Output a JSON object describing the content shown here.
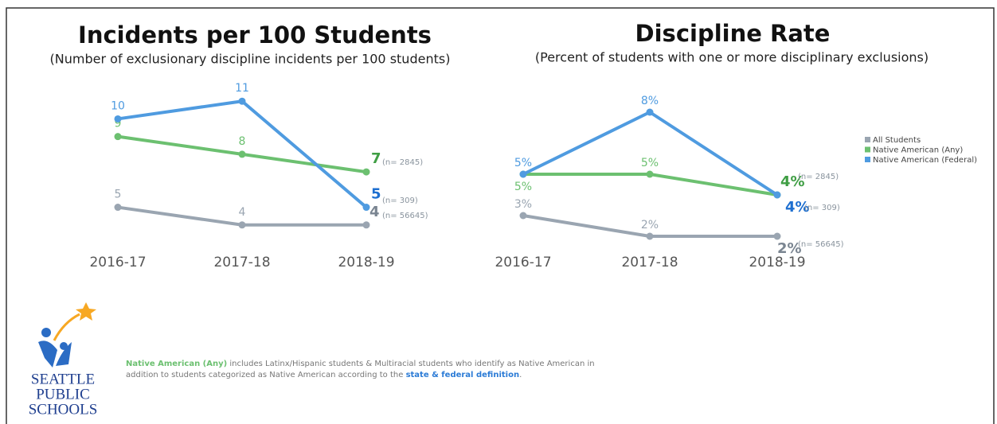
{
  "chart_data": [
    {
      "type": "line",
      "title": "Incidents per 100 Students",
      "subtitle": "(Number of exclusionary discipline incidents per 100 students)",
      "categories": [
        "2016-17",
        "2017-18",
        "2018-19"
      ],
      "ylim": [
        3,
        12
      ],
      "series": [
        {
          "name": "All Students",
          "color": "#9aa5b1",
          "values": [
            5,
            4,
            4
          ],
          "annotation": "(n= 56645)"
        },
        {
          "name": "Native American (Any)",
          "color": "#6cc070",
          "values": [
            9,
            8,
            7
          ],
          "annotation": "(n= 2845)"
        },
        {
          "name": "Native American (Federal)",
          "color": "#4f9be0",
          "values": [
            10,
            11,
            5
          ],
          "annotation": "(n= 309)"
        }
      ]
    },
    {
      "type": "line",
      "title": "Discipline Rate",
      "subtitle": "(Percent of students with one or more disciplinary exclusions)",
      "categories": [
        "2016-17",
        "2017-18",
        "2018-19"
      ],
      "ylim": [
        1,
        9
      ],
      "series": [
        {
          "color": "#9aa5b1",
          "values": [
            3,
            2,
            2
          ],
          "value_labels": [
            "3%",
            "2%",
            "2%"
          ],
          "annotation": "(n= 56645)"
        },
        {
          "color": "#6cc070",
          "values": [
            5,
            5,
            4
          ],
          "value_labels": [
            "5%",
            "5%",
            "4%"
          ],
          "annotation": "(n= 2845)"
        },
        {
          "color": "#4f9be0",
          "values": [
            5,
            8,
            4
          ],
          "value_labels": [
            "5%",
            "8%",
            "4%"
          ],
          "annotation": "(n= 309)"
        }
      ]
    }
  ],
  "footnote": {
    "term": "Native American (Any)",
    "line1": " includes Latinx/Hispanic students & Multiracial students who identify as Native American in",
    "line2": "addition to students categorized as Native American according to the ",
    "link": "state & federal definition",
    "end": "."
  },
  "logo": [
    "SEATTLE",
    "PUBLIC",
    "SCHOOLS"
  ]
}
